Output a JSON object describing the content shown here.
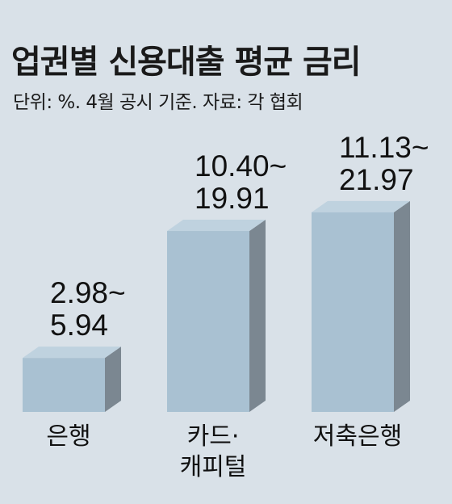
{
  "chart_data": {
    "type": "bar",
    "title": "업권별 신용대출 평균 금리",
    "subtitle": "단위: %. 4월 공시 기준. 자료: 각 협회",
    "categories": [
      {
        "lines": [
          "은행"
        ]
      },
      {
        "lines": [
          "카드·",
          "캐피털"
        ]
      },
      {
        "lines": [
          "저축은행"
        ]
      }
    ],
    "series": [
      {
        "values": [
          {
            "min": 2.98,
            "max": 5.94
          },
          {
            "min": 10.4,
            "max": 19.91
          },
          {
            "min": 11.13,
            "max": 21.97
          }
        ]
      }
    ],
    "value_labels": [
      [
        "2.98~",
        "5.94"
      ],
      [
        "10.40~",
        "19.91"
      ],
      [
        "11.13~",
        "21.97"
      ]
    ],
    "bar_value_basis": "max",
    "colors": {
      "background": "#d9e1e8",
      "bar_front": "#a9c1d2",
      "bar_top": "#bfd2df",
      "bar_side": "#7b8791"
    }
  }
}
